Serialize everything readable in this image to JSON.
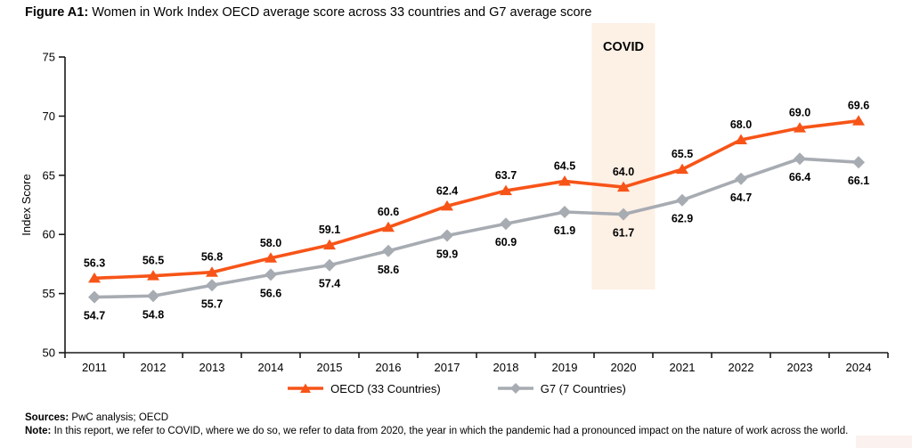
{
  "title": {
    "prefix": "Figure A1:",
    "text": " Women in Work Index OECD average score across 33 countries and G7 average score"
  },
  "chart_data": {
    "type": "line",
    "x": [
      "2011",
      "2012",
      "2013",
      "2014",
      "2015",
      "2016",
      "2017",
      "2018",
      "2019",
      "2020",
      "2021",
      "2022",
      "2023",
      "2024"
    ],
    "series": [
      {
        "name": "OECD (33 Countries)",
        "marker": "triangle",
        "color": "#f75418",
        "label_position": "above",
        "values": [
          56.3,
          56.5,
          56.8,
          58.0,
          59.1,
          60.6,
          62.4,
          63.7,
          64.5,
          64.0,
          65.5,
          68.0,
          69.0,
          69.6
        ]
      },
      {
        "name": "G7 (7 Countries)",
        "marker": "diamond",
        "color": "#a7abb2",
        "label_position": "below",
        "values": [
          54.7,
          54.8,
          55.7,
          56.6,
          57.4,
          58.6,
          59.9,
          60.9,
          61.9,
          61.7,
          62.9,
          64.7,
          66.4,
          66.1
        ]
      }
    ],
    "ylabel": "Index Score",
    "ylim": [
      50,
      75
    ],
    "yticks": [
      50,
      55,
      60,
      65,
      70,
      75
    ],
    "grid": false,
    "legend_position": "bottom-center",
    "annotation": {
      "label": "COVID",
      "x_category": "2020",
      "band_color": "#fdf0e5"
    },
    "colors": {
      "axis": "#1a1a1a",
      "text": "#000000"
    }
  },
  "footer": {
    "sources_label": "Sources:",
    "sources_text": " PwC analysis; OECD",
    "note_label": "Note:",
    "note_text": " In this report, we refer to COVID, where we do so, we refer to data from 2020, the year in which the pandemic had a pronounced impact on the nature of work across the world."
  }
}
